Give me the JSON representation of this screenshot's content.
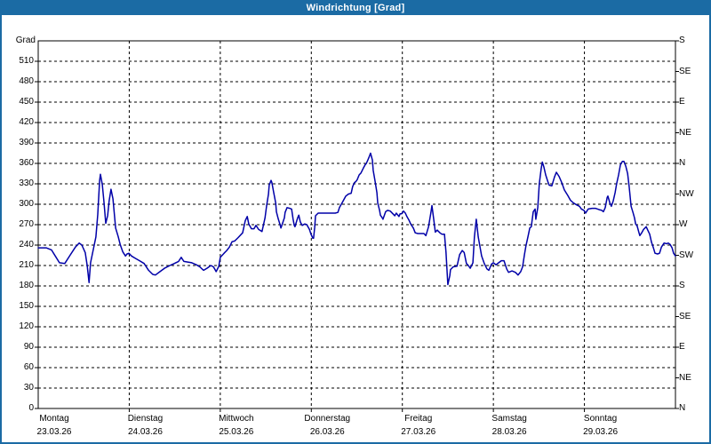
{
  "window": {
    "title": "Windrichtung [Grad]",
    "title_bar_color": "#1b6ba4",
    "border_color": "#1b6ba4",
    "background_color": "#ffffff"
  },
  "chart_data": {
    "type": "line",
    "title": "Windrichtung [Grad]",
    "ylabel": "Grad",
    "line_color": "#0000a8",
    "grid": {
      "style": "dashed",
      "color": "#000000",
      "h_step_deg": 30,
      "v_lines": "day-boundaries"
    },
    "y_axis_left": {
      "label": "Grad",
      "min": 0,
      "max": 540,
      "tick_step": 30,
      "ticks": [
        0,
        30,
        60,
        90,
        120,
        150,
        180,
        210,
        240,
        270,
        300,
        330,
        360,
        390,
        420,
        450,
        480,
        510
      ]
    },
    "y_axis_right": {
      "tick_step_deg": 45,
      "labels_top_to_bottom": [
        "S",
        "SE",
        "E",
        "NE",
        "N",
        "NW",
        "W",
        "SW",
        "S",
        "SE",
        "E",
        "NE",
        "N"
      ]
    },
    "x_axis": {
      "unit": "hours",
      "range_hours": [
        0,
        168
      ],
      "days": [
        {
          "name": "Montag",
          "date": "23.03.26"
        },
        {
          "name": "Dienstag",
          "date": "24.03.26"
        },
        {
          "name": "Mittwoch",
          "date": "25.03.26"
        },
        {
          "name": "Donnerstag",
          "date": "26.03.26"
        },
        {
          "name": "Freitag",
          "date": "27.03.26"
        },
        {
          "name": "Samstag",
          "date": "28.03.26"
        },
        {
          "name": "Sonntag",
          "date": "29.03.26"
        }
      ]
    },
    "series": [
      {
        "name": "Windrichtung",
        "points_hour_deg": [
          [
            0,
            236
          ],
          [
            2.1,
            236
          ],
          [
            3.5,
            233
          ],
          [
            4.5,
            224
          ],
          [
            5.6,
            214
          ],
          [
            7,
            213
          ],
          [
            8.4,
            225
          ],
          [
            9.8,
            237
          ],
          [
            10.8,
            243
          ],
          [
            11.5,
            240
          ],
          [
            12.4,
            229
          ],
          [
            12.9,
            210
          ],
          [
            13.4,
            185
          ],
          [
            13.8,
            214
          ],
          [
            14.5,
            233
          ],
          [
            15.2,
            252
          ],
          [
            15.7,
            285
          ],
          [
            16.2,
            335
          ],
          [
            16.4,
            344
          ],
          [
            16.9,
            329
          ],
          [
            17.3,
            306
          ],
          [
            17.8,
            272
          ],
          [
            18.3,
            283
          ],
          [
            18.7,
            305
          ],
          [
            19.2,
            322
          ],
          [
            19.7,
            308
          ],
          [
            20.4,
            265
          ],
          [
            21.1,
            252
          ],
          [
            21.6,
            241
          ],
          [
            22.3,
            230
          ],
          [
            23,
            224
          ],
          [
            23.4,
            227
          ],
          [
            23.9,
            228
          ],
          [
            24.6,
            224
          ],
          [
            25.5,
            221
          ],
          [
            26.7,
            217
          ],
          [
            27.9,
            213
          ],
          [
            29.1,
            203
          ],
          [
            30.2,
            197
          ],
          [
            30.9,
            196
          ],
          [
            32.1,
            201
          ],
          [
            33.3,
            206
          ],
          [
            34.7,
            210
          ],
          [
            35.9,
            213
          ],
          [
            37,
            216
          ],
          [
            37.7,
            222
          ],
          [
            38.4,
            216
          ],
          [
            39.6,
            215
          ],
          [
            40.5,
            214
          ],
          [
            41.7,
            211
          ],
          [
            42.6,
            208
          ],
          [
            43.6,
            203
          ],
          [
            44.5,
            206
          ],
          [
            45.5,
            210
          ],
          [
            46.2,
            208
          ],
          [
            46.9,
            201
          ],
          [
            47.6,
            209
          ],
          [
            48,
            222
          ],
          [
            49,
            228
          ],
          [
            49.7,
            232
          ],
          [
            50.4,
            237
          ],
          [
            51.1,
            245
          ],
          [
            51.8,
            246
          ],
          [
            52.7,
            251
          ],
          [
            53.9,
            258
          ],
          [
            54.6,
            276
          ],
          [
            55.1,
            282
          ],
          [
            55.5,
            271
          ],
          [
            56.2,
            264
          ],
          [
            56.9,
            264
          ],
          [
            57.4,
            269
          ],
          [
            58.1,
            263
          ],
          [
            59,
            260
          ],
          [
            59.8,
            280
          ],
          [
            60.2,
            297
          ],
          [
            60.7,
            315
          ],
          [
            60.9,
            328
          ],
          [
            61.4,
            335
          ],
          [
            61.6,
            332
          ],
          [
            62.1,
            317
          ],
          [
            62.6,
            302
          ],
          [
            62.8,
            289
          ],
          [
            63.3,
            278
          ],
          [
            63.7,
            271
          ],
          [
            64,
            265
          ],
          [
            64.4,
            272
          ],
          [
            64.9,
            280
          ],
          [
            65.1,
            288
          ],
          [
            65.6,
            295
          ],
          [
            66.3,
            294
          ],
          [
            66.8,
            293
          ],
          [
            67.2,
            278
          ],
          [
            67.5,
            269
          ],
          [
            67.7,
            267
          ],
          [
            68.4,
            280
          ],
          [
            68.7,
            284
          ],
          [
            69.1,
            274
          ],
          [
            69.6,
            269
          ],
          [
            70.3,
            271
          ],
          [
            70.8,
            270
          ],
          [
            71.5,
            263
          ],
          [
            71.9,
            256
          ],
          [
            72.4,
            250
          ],
          [
            72.6,
            250
          ],
          [
            72.9,
            266
          ],
          [
            73.1,
            283
          ],
          [
            73.8,
            287
          ],
          [
            74.7,
            287
          ],
          [
            75.9,
            287
          ],
          [
            77.1,
            287
          ],
          [
            78.3,
            287
          ],
          [
            79,
            288
          ],
          [
            79.4,
            295
          ],
          [
            80.1,
            302
          ],
          [
            80.6,
            307
          ],
          [
            81.1,
            312
          ],
          [
            81.8,
            315
          ],
          [
            82.5,
            316
          ],
          [
            82.9,
            326
          ],
          [
            83.4,
            332
          ],
          [
            83.7,
            333
          ],
          [
            84.1,
            336
          ],
          [
            84.6,
            343
          ],
          [
            85.1,
            346
          ],
          [
            85.8,
            354
          ],
          [
            86.2,
            358
          ],
          [
            86.5,
            360
          ],
          [
            86.9,
            365
          ],
          [
            87.2,
            369
          ],
          [
            87.6,
            375
          ],
          [
            88.1,
            365
          ],
          [
            88.3,
            350
          ],
          [
            88.8,
            334
          ],
          [
            89.3,
            317
          ],
          [
            89.5,
            302
          ],
          [
            90,
            291
          ],
          [
            90.2,
            284
          ],
          [
            90.7,
            280
          ],
          [
            90.9,
            278
          ],
          [
            91.6,
            289
          ],
          [
            92.1,
            291
          ],
          [
            92.8,
            290
          ],
          [
            93.5,
            286
          ],
          [
            94,
            283
          ],
          [
            94.4,
            287
          ],
          [
            95.1,
            282
          ],
          [
            95.4,
            286
          ],
          [
            95.8,
            286
          ],
          [
            96.3,
            290
          ],
          [
            96.8,
            287
          ],
          [
            97.2,
            282
          ],
          [
            97.7,
            277
          ],
          [
            98.2,
            271
          ],
          [
            98.9,
            265
          ],
          [
            99.4,
            258
          ],
          [
            100.1,
            257
          ],
          [
            101,
            257
          ],
          [
            101.7,
            257
          ],
          [
            102.2,
            254
          ],
          [
            102.9,
            267
          ],
          [
            103.6,
            290
          ],
          [
            103.8,
            298
          ],
          [
            104.3,
            277
          ],
          [
            104.7,
            259
          ],
          [
            105.2,
            262
          ],
          [
            105.9,
            258
          ],
          [
            106.4,
            256
          ],
          [
            107.1,
            256
          ],
          [
            107.5,
            230
          ],
          [
            108,
            182
          ],
          [
            108.5,
            195
          ],
          [
            108.7,
            204
          ],
          [
            109.4,
            208
          ],
          [
            110.4,
            209
          ],
          [
            111.1,
            226
          ],
          [
            111.8,
            232
          ],
          [
            112.3,
            229
          ],
          [
            112.9,
            213
          ],
          [
            113.4,
            210
          ],
          [
            113.9,
            206
          ],
          [
            114.6,
            214
          ],
          [
            115,
            252
          ],
          [
            115.5,
            278
          ],
          [
            116,
            252
          ],
          [
            116.9,
            224
          ],
          [
            117.6,
            213
          ],
          [
            118.3,
            205
          ],
          [
            118.8,
            203
          ],
          [
            119.5,
            212
          ],
          [
            120,
            214
          ],
          [
            120.7,
            211
          ],
          [
            121.4,
            214
          ],
          [
            122.1,
            217
          ],
          [
            122.8,
            217
          ],
          [
            123.5,
            205
          ],
          [
            124,
            200
          ],
          [
            124.9,
            202
          ],
          [
            125.8,
            200
          ],
          [
            126.5,
            196
          ],
          [
            127.2,
            201
          ],
          [
            127.7,
            208
          ],
          [
            128.2,
            226
          ],
          [
            128.6,
            239
          ],
          [
            129.1,
            252
          ],
          [
            129.6,
            265
          ],
          [
            130,
            267
          ],
          [
            130.5,
            289
          ],
          [
            131,
            293
          ],
          [
            131.2,
            278
          ],
          [
            131.7,
            295
          ],
          [
            132.1,
            330
          ],
          [
            132.6,
            352
          ],
          [
            132.9,
            362
          ],
          [
            133.3,
            355
          ],
          [
            133.8,
            343
          ],
          [
            134.3,
            334
          ],
          [
            134.7,
            328
          ],
          [
            135.4,
            327
          ],
          [
            136.1,
            340
          ],
          [
            136.6,
            347
          ],
          [
            137.3,
            341
          ],
          [
            138,
            332
          ],
          [
            138.7,
            321
          ],
          [
            139.6,
            313
          ],
          [
            140.3,
            306
          ],
          [
            141.1,
            302
          ],
          [
            142,
            299
          ],
          [
            142.7,
            297
          ],
          [
            143.2,
            293
          ],
          [
            143.9,
            291
          ],
          [
            144.3,
            287
          ],
          [
            145,
            293
          ],
          [
            146,
            294
          ],
          [
            146.9,
            294
          ],
          [
            147.9,
            292
          ],
          [
            148.6,
            291
          ],
          [
            149,
            289
          ],
          [
            149.5,
            295
          ],
          [
            150,
            310
          ],
          [
            150.2,
            312
          ],
          [
            150.7,
            302
          ],
          [
            151.1,
            297
          ],
          [
            151.6,
            305
          ],
          [
            152.1,
            317
          ],
          [
            152.5,
            330
          ],
          [
            153,
            343
          ],
          [
            153.5,
            358
          ],
          [
            154,
            363
          ],
          [
            154.4,
            363
          ],
          [
            154.9,
            356
          ],
          [
            155.4,
            345
          ],
          [
            155.8,
            326
          ],
          [
            156.3,
            297
          ],
          [
            156.8,
            288
          ],
          [
            157.2,
            280
          ],
          [
            157.5,
            271
          ],
          [
            157.9,
            268
          ],
          [
            158.4,
            258
          ],
          [
            158.6,
            254
          ],
          [
            159.1,
            258
          ],
          [
            159.6,
            263
          ],
          [
            160.3,
            267
          ],
          [
            160.7,
            262
          ],
          [
            161.2,
            256
          ],
          [
            161.7,
            244
          ],
          [
            162.2,
            236
          ],
          [
            162.6,
            228
          ],
          [
            163.3,
            227
          ],
          [
            163.8,
            228
          ],
          [
            164.3,
            237
          ],
          [
            165,
            243
          ],
          [
            165.7,
            242
          ],
          [
            166.1,
            243
          ],
          [
            166.6,
            241
          ],
          [
            167.1,
            236
          ],
          [
            167.5,
            228
          ],
          [
            168,
            224
          ]
        ]
      }
    ]
  }
}
